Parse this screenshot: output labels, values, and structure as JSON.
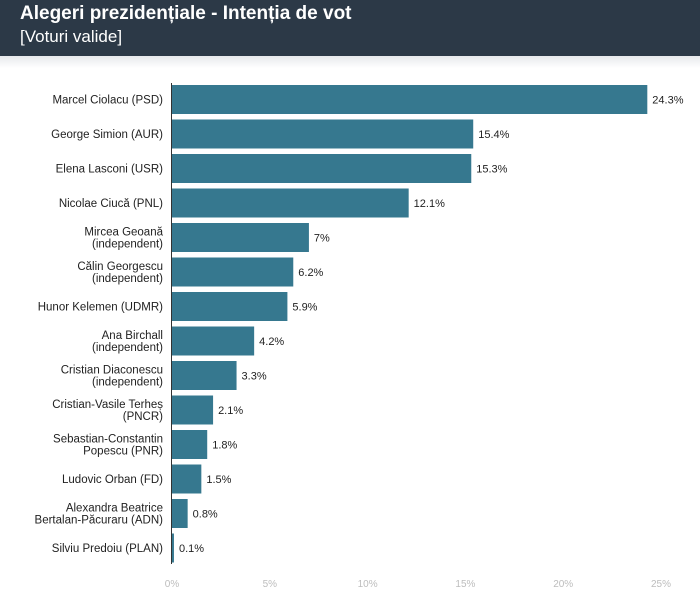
{
  "header": {
    "title": "Alegeri prezidențiale - Intenția de vot",
    "subtitle": "[Voturi valide]"
  },
  "colors": {
    "header_bg": "#2c3947",
    "bar": "#36788f",
    "axis_line": "#333333",
    "tick_text": "#bdbdbd",
    "label_text": "#222222"
  },
  "chart_data": {
    "type": "bar",
    "orientation": "horizontal",
    "title": "Alegeri prezidențiale - Intenția de vot",
    "subtitle": "[Voturi valide]",
    "categories": [
      [
        "Marcel Ciolacu (PSD)"
      ],
      [
        "George Simion (AUR)"
      ],
      [
        "Elena Lasconi (USR)"
      ],
      [
        "Nicolae Ciucă (PNL)"
      ],
      [
        "Mircea Geoană",
        "(independent)"
      ],
      [
        "Călin Georgescu",
        "(independent)"
      ],
      [
        "Hunor Kelemen (UDMR)"
      ],
      [
        "Ana Birchall",
        "(independent)"
      ],
      [
        "Cristian Diaconescu",
        "(independent)"
      ],
      [
        "Cristian-Vasile Terheș",
        "(PNCR)"
      ],
      [
        "Sebastian-Constantin",
        "Popescu (PNR)"
      ],
      [
        "Ludovic Orban (FD)"
      ],
      [
        "Alexandra Beatrice",
        "Bertalan-Păcuraru (ADN)"
      ],
      [
        "Silviu Predoiu (PLAN)"
      ]
    ],
    "values": [
      24.3,
      15.4,
      15.3,
      12.1,
      7,
      6.2,
      5.9,
      4.2,
      3.3,
      2.1,
      1.8,
      1.5,
      0.8,
      0.1
    ],
    "value_labels": [
      "24.3%",
      "15.4%",
      "15.3%",
      "12.1%",
      "7%",
      "6.2%",
      "5.9%",
      "4.2%",
      "3.3%",
      "2.1%",
      "1.8%",
      "1.5%",
      "0.8%",
      "0.1%"
    ],
    "xlim": [
      0,
      25
    ],
    "x_ticks": [
      0,
      5,
      10,
      15,
      20,
      25
    ],
    "x_tick_labels": [
      "0%",
      "5%",
      "10%",
      "15%",
      "20%",
      "25%"
    ],
    "grid": false,
    "legend": "none"
  }
}
